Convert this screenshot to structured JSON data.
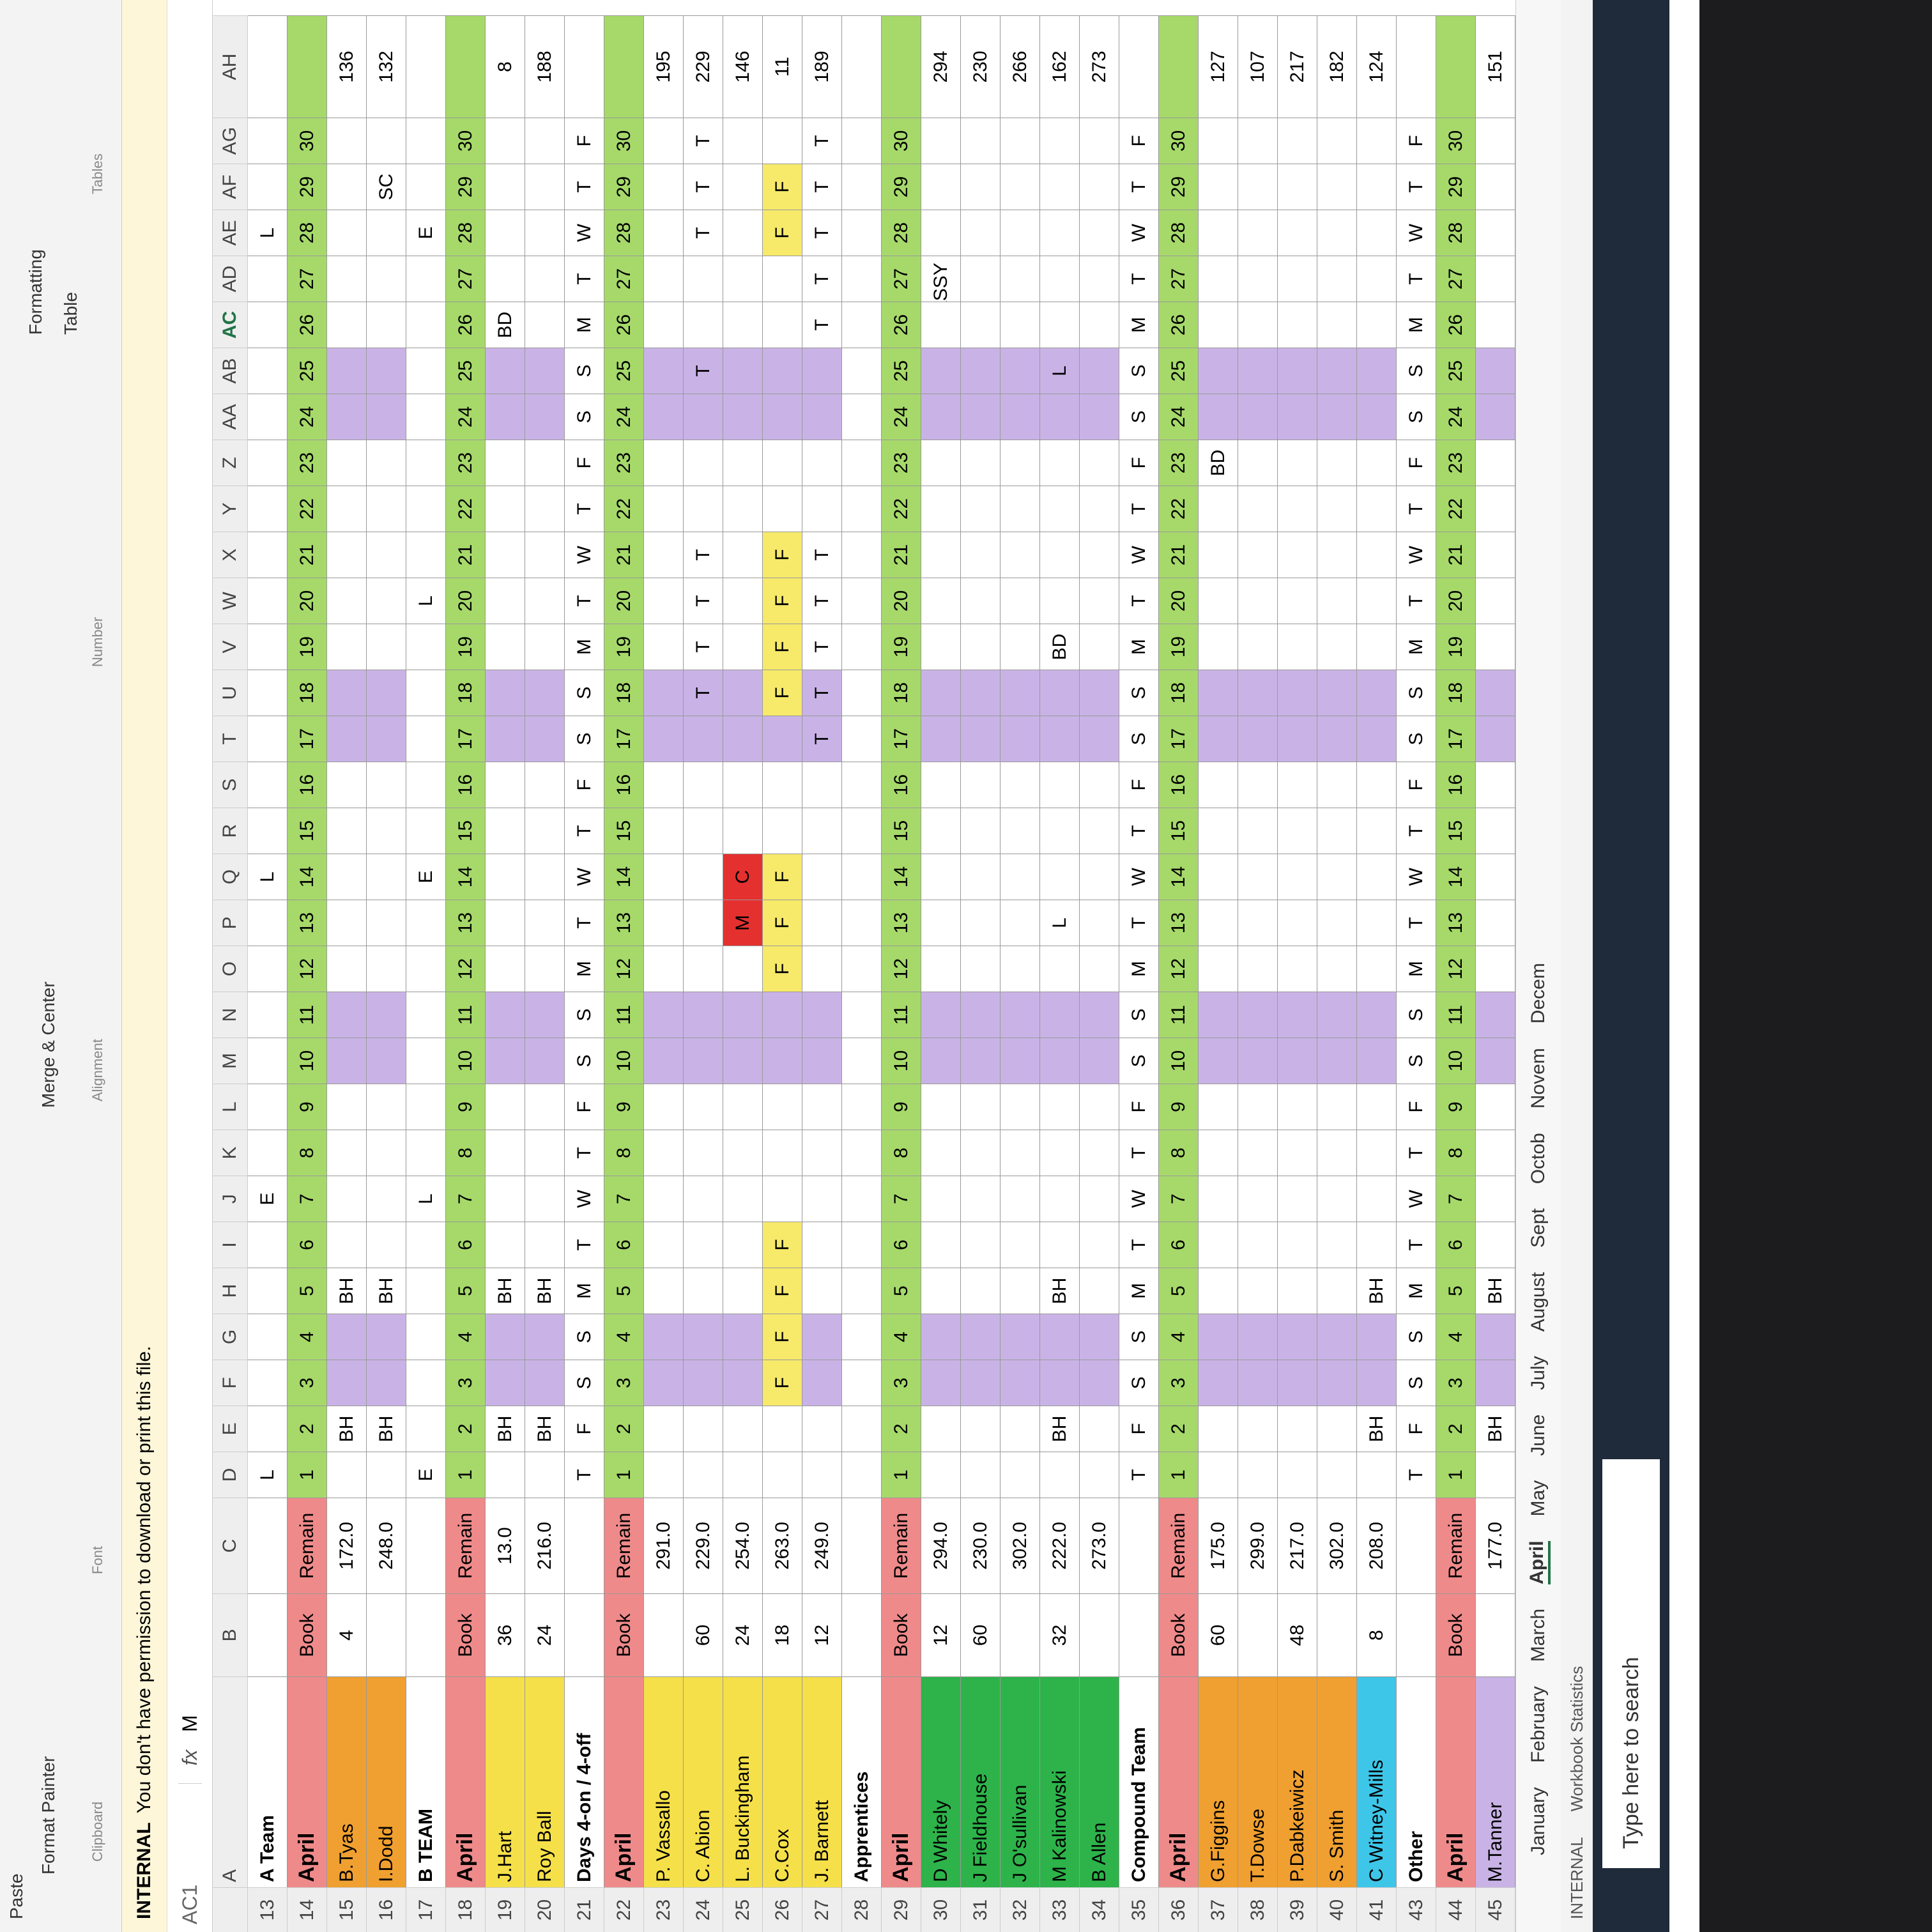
{
  "ribbon": {
    "items": [
      "Paste",
      "Format Painter",
      "Clipboard",
      "Font",
      "Merge & Center",
      "Alignment",
      "Number",
      "Formatting",
      "Table",
      "Tables"
    ]
  },
  "info_bar": {
    "tag": "INTERNAL",
    "message": "You don't have permission to download or print this file."
  },
  "formula_bar": {
    "name_box": "AC1",
    "fx": "fx",
    "content": "M"
  },
  "columns": [
    "A",
    "B",
    "C",
    "D",
    "E",
    "F",
    "G",
    "H",
    "I",
    "J",
    "K",
    "L",
    "M",
    "N",
    "O",
    "P",
    "Q",
    "R",
    "S",
    "T",
    "U",
    "V",
    "W",
    "X",
    "Y",
    "Z",
    "AA",
    "AB",
    "AC",
    "AD",
    "AE",
    "AF",
    "AG",
    "AH"
  ],
  "weekdays": [
    "T",
    "F",
    "S",
    "S",
    "M",
    "T",
    "W",
    "T",
    "F",
    "S",
    "S",
    "M",
    "T",
    "W",
    "T",
    "F",
    "S",
    "S",
    "M",
    "T",
    "W",
    "T",
    "F",
    "S",
    "S",
    "M",
    "T",
    "W",
    "T",
    "F"
  ],
  "rows": [
    {
      "num": 13,
      "kind": "title",
      "name": "A Team",
      "days": [
        "L",
        null,
        null,
        null,
        null,
        null,
        "E",
        null,
        null,
        null,
        null,
        null,
        null,
        "L",
        null,
        null,
        null,
        null,
        null,
        null,
        null,
        null,
        null,
        null,
        null,
        null,
        null,
        "L",
        null,
        null
      ]
    },
    {
      "num": 14,
      "kind": "header",
      "name": "April",
      "book": "Book",
      "remain": "Remain",
      "days": [
        1,
        2,
        3,
        4,
        5,
        6,
        7,
        8,
        9,
        10,
        11,
        12,
        13,
        14,
        15,
        16,
        17,
        18,
        19,
        20,
        21,
        22,
        23,
        24,
        25,
        26,
        27,
        28,
        29,
        30
      ]
    },
    {
      "num": 15,
      "kind": "person",
      "name": "B.Tyas",
      "color": "#f0a030",
      "book": 4,
      "remain": "172.0",
      "days": [
        null,
        "BH",
        null,
        null,
        "BH",
        null,
        null,
        null,
        null,
        null,
        null,
        null,
        null,
        null,
        null,
        null,
        null,
        null,
        null,
        null,
        null,
        null,
        null,
        null,
        null,
        null,
        null,
        null,
        null,
        null
      ],
      "total": 136
    },
    {
      "num": 16,
      "kind": "person",
      "name": "I.Dodd",
      "color": "#f0a030",
      "remain": "248.0",
      "days": [
        null,
        "BH",
        null,
        null,
        "BH",
        null,
        null,
        null,
        null,
        null,
        null,
        null,
        null,
        null,
        null,
        null,
        null,
        null,
        null,
        null,
        null,
        null,
        null,
        null,
        null,
        null,
        null,
        null,
        "SC",
        null
      ],
      "total": 132
    },
    {
      "num": 17,
      "kind": "title",
      "name": "B TEAM",
      "days": [
        "E",
        null,
        null,
        null,
        null,
        null,
        "L",
        null,
        null,
        null,
        null,
        null,
        null,
        "E",
        null,
        null,
        null,
        null,
        null,
        "L",
        null,
        null,
        null,
        null,
        null,
        null,
        null,
        "E",
        null,
        null
      ]
    },
    {
      "num": 18,
      "kind": "header",
      "name": "April",
      "book": "Book",
      "remain": "Remain",
      "days": [
        1,
        2,
        3,
        4,
        5,
        6,
        7,
        8,
        9,
        10,
        11,
        12,
        13,
        14,
        15,
        16,
        17,
        18,
        19,
        20,
        21,
        22,
        23,
        24,
        25,
        26,
        27,
        28,
        29,
        30
      ]
    },
    {
      "num": 19,
      "kind": "person",
      "name": "J.Hart",
      "color": "#f5e04a",
      "book": 36,
      "remain": "13.0",
      "days": [
        null,
        "BH",
        null,
        null,
        "BH",
        null,
        null,
        null,
        null,
        null,
        null,
        null,
        null,
        null,
        null,
        null,
        null,
        null,
        null,
        null,
        null,
        null,
        null,
        null,
        null,
        "BD",
        null,
        null,
        null,
        null
      ],
      "total": 8
    },
    {
      "num": 20,
      "kind": "person",
      "name": "Roy Ball",
      "color": "#f5e04a",
      "book": 24,
      "remain": "216.0",
      "days": [
        null,
        "BH",
        null,
        null,
        "BH",
        null,
        null,
        null,
        null,
        null,
        null,
        null,
        null,
        null,
        null,
        null,
        null,
        null,
        null,
        null,
        null,
        null,
        null,
        null,
        null,
        null,
        null,
        null,
        null,
        null
      ],
      "total": 188
    },
    {
      "num": 21,
      "kind": "title",
      "name": "Days 4-on / 4-off",
      "days": [
        "T",
        "F",
        "S",
        "S",
        "M",
        "T",
        "W",
        "T",
        "F",
        "S",
        "S",
        "M",
        "T",
        "W",
        "T",
        "F",
        "S",
        "S",
        "M",
        "T",
        "W",
        "T",
        "F",
        "S",
        "S",
        "M",
        "T",
        "W",
        "T",
        "F"
      ]
    },
    {
      "num": 22,
      "kind": "header",
      "name": "April",
      "book": "Book",
      "remain": "Remain",
      "days": [
        1,
        2,
        3,
        4,
        5,
        6,
        7,
        8,
        9,
        10,
        11,
        12,
        13,
        14,
        15,
        16,
        17,
        18,
        19,
        20,
        21,
        22,
        23,
        24,
        25,
        26,
        27,
        28,
        29,
        30
      ]
    },
    {
      "num": 23,
      "kind": "person",
      "name": "P. Vassallo",
      "color": "#f5e04a",
      "remain": "291.0",
      "days": [
        null,
        null,
        null,
        null,
        null,
        null,
        null,
        null,
        null,
        null,
        null,
        null,
        null,
        null,
        null,
        null,
        null,
        null,
        null,
        null,
        null,
        null,
        null,
        null,
        null,
        null,
        null,
        null,
        null,
        null
      ],
      "total": 195
    },
    {
      "num": 24,
      "kind": "person",
      "name": "C. Abion",
      "color": "#f5e04a",
      "book": 60,
      "remain": "229.0",
      "days": [
        null,
        null,
        null,
        null,
        null,
        null,
        null,
        null,
        null,
        null,
        null,
        null,
        null,
        null,
        null,
        null,
        null,
        "T",
        "T",
        "T",
        "T",
        null,
        null,
        null,
        "T",
        null,
        null,
        "T",
        "T",
        "T"
      ],
      "total": 229
    },
    {
      "num": 25,
      "kind": "person",
      "name": "L. Buckingham",
      "color": "#f5e04a",
      "book": 24,
      "remain": "254.0",
      "days": [
        null,
        null,
        null,
        null,
        null,
        null,
        null,
        null,
        null,
        null,
        null,
        null,
        "M",
        "C",
        null,
        null,
        null,
        null,
        null,
        null,
        null,
        null,
        null,
        null,
        null,
        null,
        null,
        null,
        null,
        null
      ],
      "total": 146
    },
    {
      "num": 26,
      "kind": "person",
      "name": "C.Cox",
      "color": "#f5e04a",
      "book": 18,
      "remain": "263.0",
      "days": [
        null,
        null,
        "F",
        "F",
        "F",
        "F",
        null,
        null,
        null,
        null,
        null,
        "F",
        "F",
        "F",
        null,
        null,
        null,
        "F",
        "F",
        "F",
        "F",
        null,
        null,
        null,
        null,
        null,
        null,
        "F",
        "F",
        null
      ],
      "total": 11
    },
    {
      "num": 27,
      "kind": "person",
      "name": "J. Barnett",
      "color": "#f5e04a",
      "book": 12,
      "remain": "249.0",
      "days": [
        null,
        null,
        null,
        null,
        null,
        null,
        null,
        null,
        null,
        null,
        null,
        null,
        null,
        null,
        null,
        null,
        "T",
        "T",
        "T",
        "T",
        "T",
        null,
        null,
        null,
        null,
        "T",
        "T",
        "T",
        "T",
        "T"
      ],
      "total": 189
    },
    {
      "num": 28,
      "kind": "title",
      "name": "Apprentices"
    },
    {
      "num": 29,
      "kind": "header",
      "name": "April",
      "book": "Book",
      "remain": "Remain",
      "days": [
        1,
        2,
        3,
        4,
        5,
        6,
        7,
        8,
        9,
        10,
        11,
        12,
        13,
        14,
        15,
        16,
        17,
        18,
        19,
        20,
        21,
        22,
        23,
        24,
        25,
        26,
        27,
        28,
        29,
        30
      ]
    },
    {
      "num": 30,
      "kind": "person",
      "name": "D Whitely",
      "color": "#2db34a",
      "book": 12,
      "remain": "294.0",
      "days": [
        null,
        null,
        null,
        null,
        null,
        null,
        null,
        null,
        null,
        null,
        null,
        null,
        null,
        null,
        null,
        null,
        null,
        null,
        null,
        null,
        null,
        null,
        null,
        null,
        null,
        null,
        "ASSY N",
        null,
        null,
        null
      ],
      "total": 294
    },
    {
      "num": 31,
      "kind": "person",
      "name": "J Fieldhouse",
      "color": "#2db34a",
      "book": 60,
      "remain": "230.0",
      "days": [
        null,
        null,
        null,
        null,
        null,
        null,
        null,
        null,
        null,
        null,
        null,
        null,
        null,
        null,
        null,
        null,
        null,
        null,
        null,
        null,
        null,
        null,
        null,
        null,
        null,
        null,
        null,
        null,
        null,
        null
      ],
      "total": 230
    },
    {
      "num": 32,
      "kind": "person",
      "name": "J O'sullivan",
      "color": "#2db34a",
      "remain": "302.0",
      "days": [
        null,
        null,
        null,
        null,
        null,
        null,
        null,
        null,
        null,
        null,
        null,
        null,
        null,
        null,
        null,
        null,
        null,
        null,
        null,
        null,
        null,
        null,
        null,
        null,
        null,
        null,
        null,
        null,
        null,
        null
      ],
      "total": 266
    },
    {
      "num": 33,
      "kind": "person",
      "name": "M Kalinowski",
      "color": "#2db34a",
      "book": 32,
      "remain": "222.0",
      "days": [
        null,
        "BH",
        null,
        null,
        "BH",
        null,
        null,
        null,
        null,
        null,
        null,
        null,
        "L",
        null,
        null,
        null,
        null,
        null,
        "BD",
        null,
        null,
        null,
        null,
        null,
        "L",
        null,
        null,
        null,
        null,
        null
      ],
      "total": 162
    },
    {
      "num": 34,
      "kind": "person",
      "name": "B Allen",
      "color": "#2db34a",
      "remain": "273.0",
      "days": [
        null,
        null,
        null,
        null,
        null,
        null,
        null,
        null,
        null,
        null,
        null,
        null,
        null,
        null,
        null,
        null,
        null,
        null,
        null,
        null,
        null,
        null,
        null,
        null,
        null,
        null,
        null,
        null,
        null,
        null
      ],
      "total": 273
    },
    {
      "num": 35,
      "kind": "title",
      "name": "Compound Team",
      "days": [
        "T",
        "F",
        "S",
        "S",
        "M",
        "T",
        "W",
        "T",
        "F",
        "S",
        "S",
        "M",
        "T",
        "W",
        "T",
        "F",
        "S",
        "S",
        "M",
        "T",
        "W",
        "T",
        "F",
        "S",
        "S",
        "M",
        "T",
        "W",
        "T",
        "F"
      ]
    },
    {
      "num": 36,
      "kind": "header",
      "name": "April",
      "book": "Book",
      "remain": "Remain",
      "days": [
        1,
        2,
        3,
        4,
        5,
        6,
        7,
        8,
        9,
        10,
        11,
        12,
        13,
        14,
        15,
        16,
        17,
        18,
        19,
        20,
        21,
        22,
        23,
        24,
        25,
        26,
        27,
        28,
        29,
        30
      ]
    },
    {
      "num": 37,
      "kind": "person",
      "name": "G.Figgins",
      "color": "#f0a030",
      "book": 60,
      "remain": "175.0",
      "days": [
        null,
        null,
        null,
        null,
        null,
        null,
        null,
        null,
        null,
        null,
        null,
        null,
        null,
        null,
        null,
        null,
        null,
        null,
        null,
        null,
        null,
        null,
        "BD",
        null,
        null,
        null,
        null,
        null,
        null,
        null
      ],
      "total": 127
    },
    {
      "num": 38,
      "kind": "person",
      "name": "T.Dowse",
      "color": "#f0a030",
      "remain": "299.0",
      "days": [
        null,
        null,
        null,
        null,
        null,
        null,
        null,
        null,
        null,
        null,
        null,
        null,
        null,
        null,
        null,
        null,
        null,
        null,
        null,
        null,
        null,
        null,
        null,
        null,
        null,
        null,
        null,
        null,
        null,
        null
      ],
      "total": 107
    },
    {
      "num": 39,
      "kind": "person",
      "name": "P.Dabkeiwicz",
      "color": "#f0a030",
      "book": 48,
      "remain": "217.0",
      "days": [
        null,
        null,
        null,
        null,
        null,
        null,
        null,
        null,
        null,
        null,
        null,
        null,
        null,
        null,
        null,
        null,
        null,
        null,
        null,
        null,
        null,
        null,
        null,
        null,
        null,
        null,
        null,
        null,
        null,
        null
      ],
      "total": 217
    },
    {
      "num": 40,
      "kind": "person",
      "name": "S. Smith",
      "color": "#f0a030",
      "remain": "302.0",
      "days": [
        null,
        null,
        null,
        null,
        null,
        null,
        null,
        null,
        null,
        null,
        null,
        null,
        null,
        null,
        null,
        null,
        null,
        null,
        null,
        null,
        null,
        null,
        null,
        null,
        null,
        null,
        null,
        null,
        null,
        null
      ],
      "total": 182
    },
    {
      "num": 41,
      "kind": "person",
      "name": "C Witney-Mills",
      "color": "#3ec6e8",
      "book": 8,
      "remain": "208.0",
      "days": [
        null,
        "BH",
        null,
        null,
        "BH",
        null,
        null,
        null,
        null,
        null,
        null,
        null,
        null,
        null,
        null,
        null,
        null,
        null,
        null,
        null,
        null,
        null,
        null,
        null,
        null,
        null,
        null,
        null,
        null,
        null
      ],
      "total": 124
    },
    {
      "num": 43,
      "kind": "title",
      "name": "Other",
      "days": [
        "T",
        "F",
        "S",
        "S",
        "M",
        "T",
        "W",
        "T",
        "F",
        "S",
        "S",
        "M",
        "T",
        "W",
        "T",
        "F",
        "S",
        "S",
        "M",
        "T",
        "W",
        "T",
        "F",
        "S",
        "S",
        "M",
        "T",
        "W",
        "T",
        "F"
      ]
    },
    {
      "num": 44,
      "kind": "header",
      "name": "April",
      "book": "Book",
      "remain": "Remain",
      "days": [
        1,
        2,
        3,
        4,
        5,
        6,
        7,
        8,
        9,
        10,
        11,
        12,
        13,
        14,
        15,
        16,
        17,
        18,
        19,
        20,
        21,
        22,
        23,
        24,
        25,
        26,
        27,
        28,
        29,
        30
      ]
    },
    {
      "num": 45,
      "kind": "person",
      "name": "M.Tanner",
      "color": "#c9b3e6",
      "remain": "177.0",
      "days": [
        null,
        "BH",
        null,
        null,
        "BH",
        null,
        null,
        null,
        null,
        null,
        null,
        null,
        null,
        null,
        null,
        null,
        null,
        null,
        null,
        null,
        null,
        null,
        null,
        null,
        null,
        null,
        null,
        null,
        null,
        null
      ],
      "total": 151
    }
  ],
  "sheet_tabs": [
    "January",
    "February",
    "March",
    "April",
    "May",
    "June",
    "July",
    "August",
    "Sept",
    "Octob",
    "Novem",
    "Decem"
  ],
  "active_tab": "April",
  "status_bar": [
    "INTERNAL",
    "Workbook Statistics"
  ],
  "taskbar": {
    "search": "Type here to search"
  }
}
